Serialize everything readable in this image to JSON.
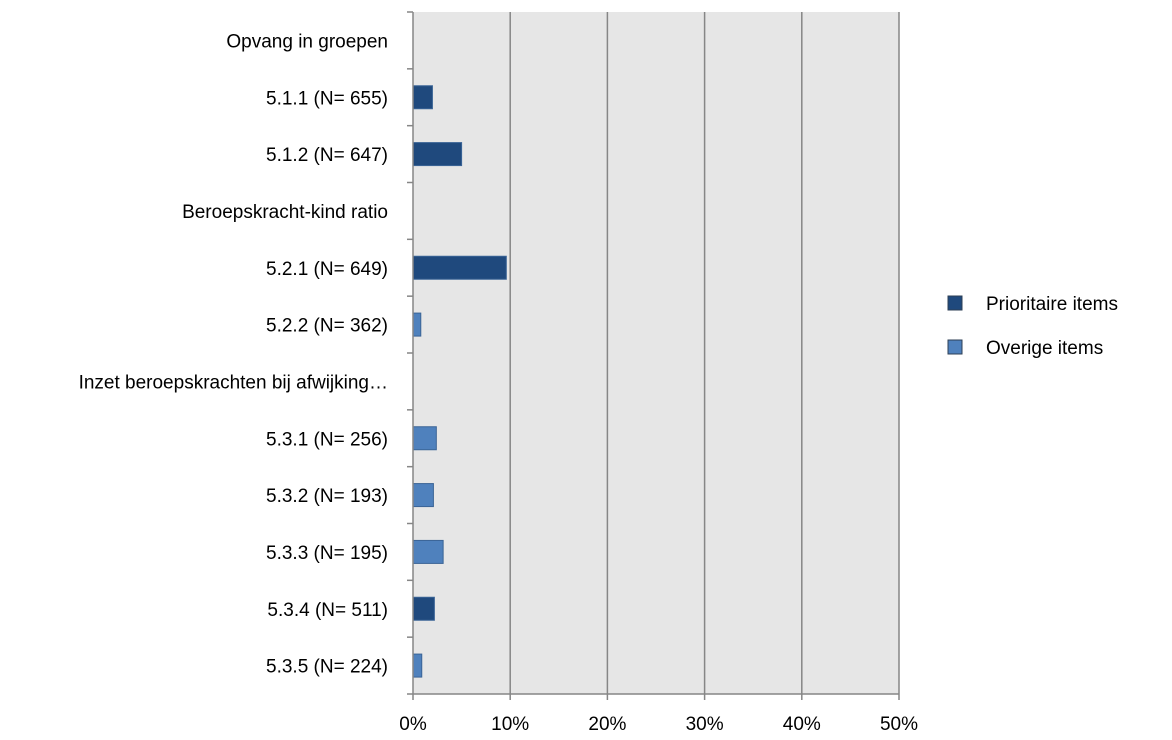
{
  "chart_data": {
    "type": "bar",
    "orientation": "horizontal",
    "categories": [
      "Opvang in groepen",
      "5.1.1 (N= 655)",
      "5.1.2 (N= 647)",
      "Beroepskracht-kind ratio",
      "5.2.1 (N= 649)",
      "5.2.2 (N= 362)",
      "Inzet beroepskrachten bij afwijking…",
      "5.3.1 (N= 256)",
      "5.3.2 (N= 193)",
      "5.3.3 (N= 195)",
      "5.3.4 (N= 511)",
      "5.3.5 (N= 224)"
    ],
    "series": [
      {
        "name": "Prioritaire items",
        "color": "#1f497d",
        "values": [
          null,
          2.0,
          5.0,
          null,
          9.6,
          null,
          null,
          null,
          null,
          null,
          2.2,
          null
        ]
      },
      {
        "name": "Overige items",
        "color": "#4f81bd",
        "values": [
          null,
          null,
          null,
          null,
          null,
          0.8,
          null,
          2.4,
          2.1,
          3.1,
          null,
          0.9
        ]
      }
    ],
    "x_ticks": [
      "0%",
      "10%",
      "20%",
      "30%",
      "40%",
      "50%"
    ],
    "xlim": [
      0,
      50
    ],
    "grid": "vertical",
    "legend_position": "right"
  }
}
